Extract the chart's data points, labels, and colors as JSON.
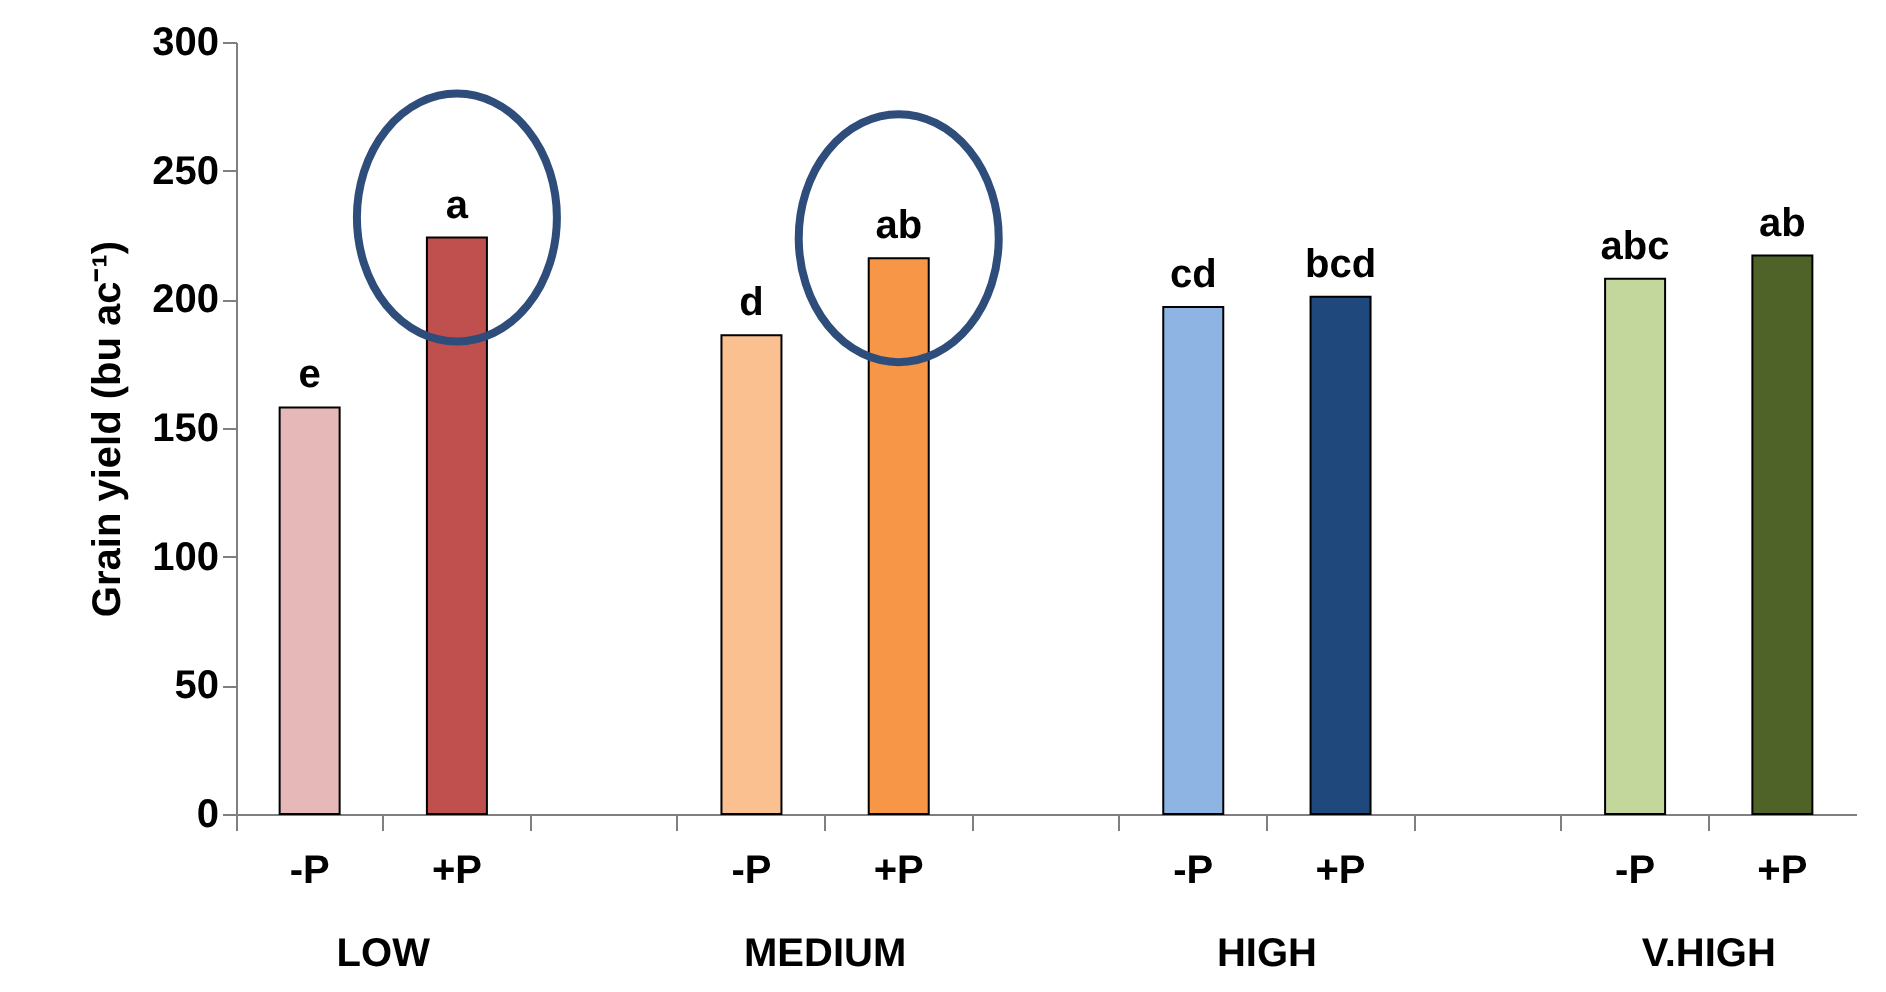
{
  "chart_data": {
    "type": "bar",
    "ylabel": "Grain yield (bu ac⁻¹)",
    "categories": [
      "-P",
      "+P",
      null,
      "-P",
      "+P",
      null,
      "-P",
      "+P",
      null,
      "-P",
      "+P"
    ],
    "values": [
      158,
      224,
      null,
      186,
      216,
      null,
      197,
      201,
      null,
      208,
      217
    ],
    "colors": [
      "#e6b9b8",
      "#c0504d",
      "#ffffff",
      "#fac090",
      "#f79646",
      "#ffffff",
      "#8eb4e3",
      "#1f497d",
      "#ffffff",
      "#c3d69b",
      "#4f6228"
    ],
    "value_labels": [
      "e",
      "a",
      null,
      "d",
      "ab",
      null,
      "cd",
      "bcd",
      null,
      "abc",
      "ab"
    ],
    "annotations": [
      "LOW",
      "MEDIUM",
      "HIGH",
      "V.HIGH"
    ],
    "ylim": [
      0,
      300
    ],
    "yticks": [
      0,
      50,
      100,
      150,
      200,
      250,
      300
    ],
    "grid": false
  }
}
